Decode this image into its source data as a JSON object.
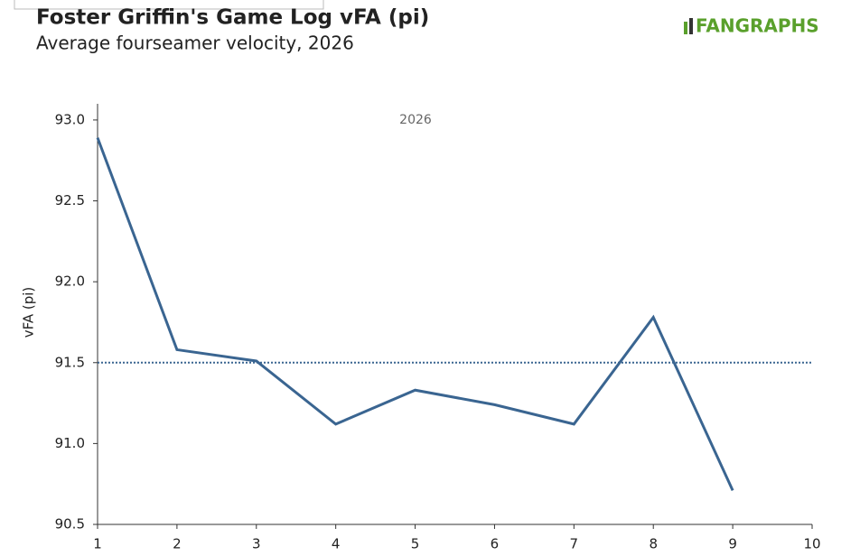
{
  "chart_data": {
    "type": "line",
    "title": "Foster Griffin's Game Log vFA (pi)",
    "subtitle": "Average fourseamer velocity, 2026",
    "logo": "FANGRAPHS",
    "annotation": "2026",
    "y_label": "vFA (pi)",
    "x": [
      1,
      2,
      3,
      4,
      5,
      6,
      7,
      8,
      9
    ],
    "series": [
      {
        "name": "2026",
        "color": "#3a6591",
        "values": [
          92.89,
          91.58,
          91.51,
          91.12,
          91.33,
          91.24,
          91.12,
          91.78,
          90.71
        ]
      }
    ],
    "reference_line": 91.5,
    "xlim": [
      1,
      10
    ],
    "xticks": [
      1,
      2,
      3,
      4,
      5,
      6,
      7,
      8,
      9,
      10
    ],
    "ylim": [
      90.5,
      93.1
    ],
    "yticks": [
      {
        "value": 90.5,
        "label": "90.5"
      },
      {
        "value": 91,
        "label": "91.0"
      },
      {
        "value": 91.5,
        "label": "91.5"
      },
      {
        "value": 92,
        "label": "92.0"
      },
      {
        "value": 92.5,
        "label": "92.5"
      },
      {
        "value": 93,
        "label": "93.0"
      }
    ]
  }
}
